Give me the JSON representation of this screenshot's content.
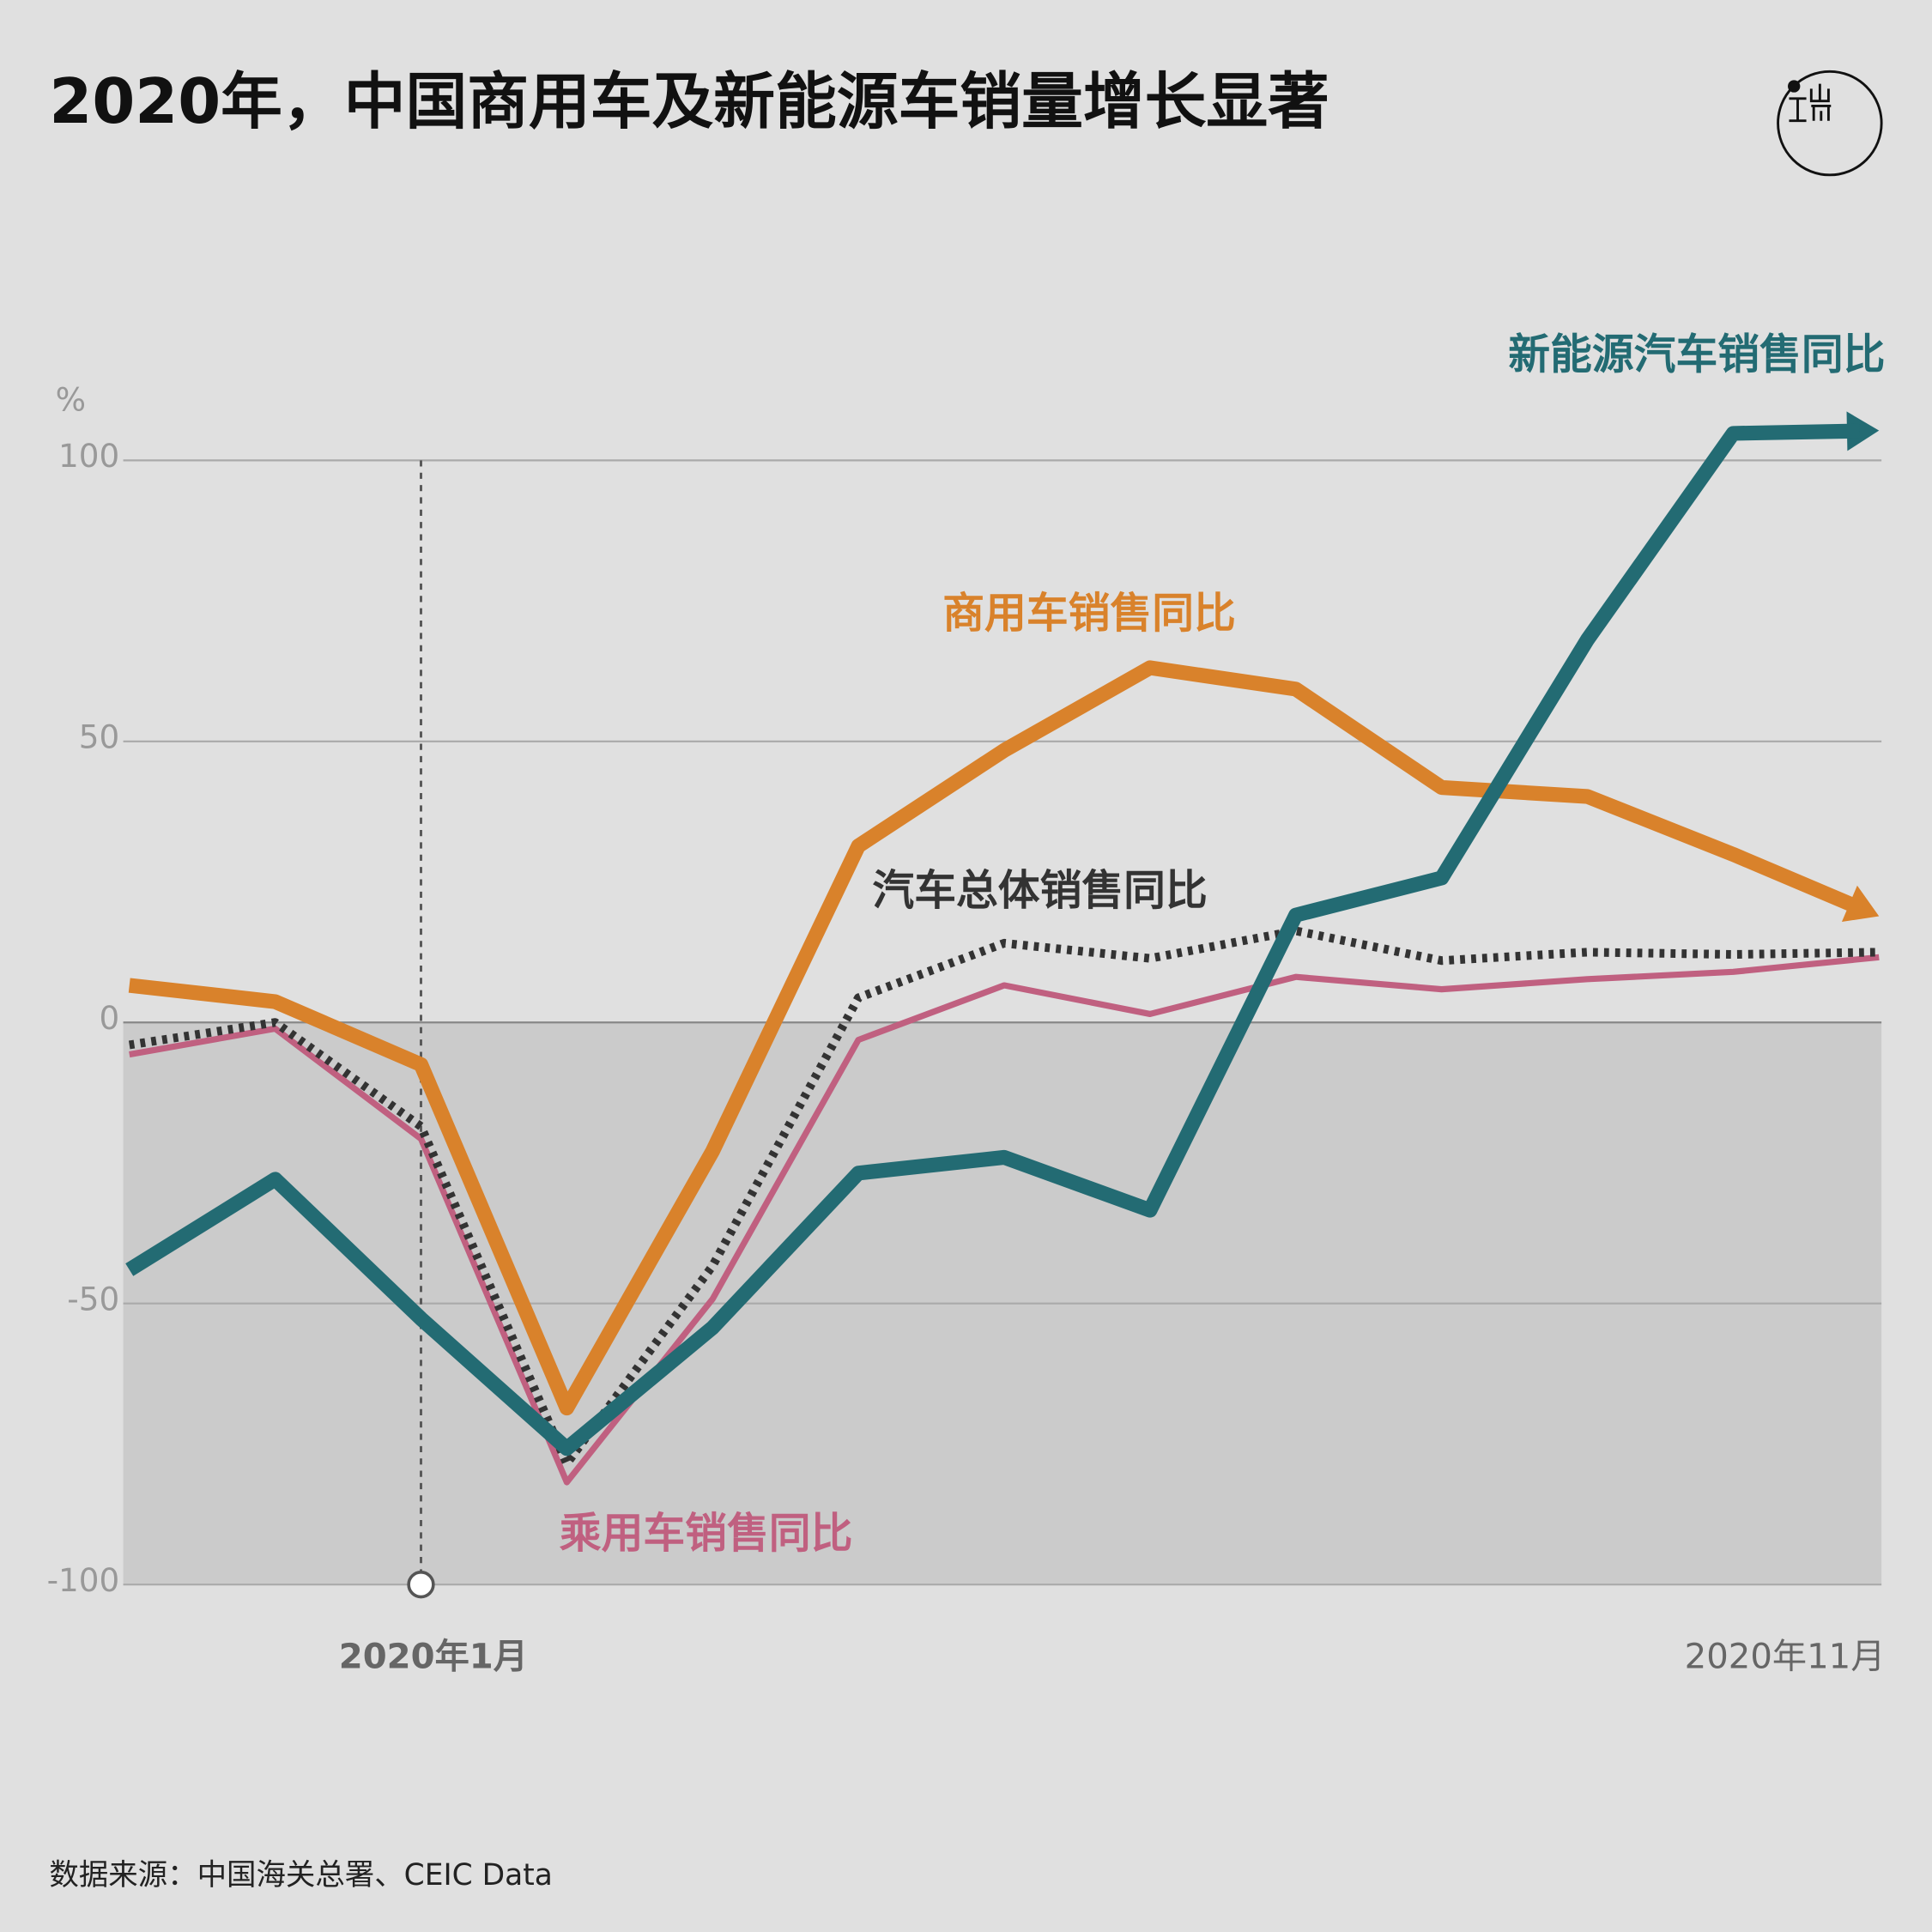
{
  "chart_data": {
    "type": "line",
    "title": "2020年，中国商用车及新能源车销量增长显著",
    "y_unit": "%",
    "source": "数据来源：中国海关总署、CEIC Data",
    "categories": [
      null,
      null,
      "2020年1月",
      null,
      null,
      null,
      null,
      null,
      null,
      null,
      null,
      null,
      "2020年11月"
    ],
    "ylim": [
      -100,
      110
    ],
    "yticks": [
      -100,
      -50,
      0,
      50,
      100
    ],
    "grid": true,
    "series": [
      {
        "name": "乘用车销售同比",
        "color": "#c06080",
        "values": [
          -5.7,
          -1.1,
          -20.7,
          -81.8,
          -49.2,
          -3.1,
          6.6,
          1.5,
          8.1,
          5.9,
          7.7,
          9,
          11.6
        ]
      },
      {
        "name": "汽车总体销售同比",
        "color": "#333333",
        "values": [
          -4,
          0,
          -18.5,
          -78.5,
          -43.3,
          4.4,
          14.1,
          11.4,
          16.3,
          11,
          12.5,
          12.1,
          12.5
        ]
      },
      {
        "name": "商用车销售同比",
        "color": "#d9822b",
        "values": [
          6.6,
          3.7,
          -7.5,
          -68.6,
          -22.9,
          31.4,
          48.4,
          63.1,
          59.3,
          41.8,
          40.2,
          29.9,
          18.9
        ]
      },
      {
        "name": "新能源汽车销售同比",
        "color": "#236b73",
        "values": [
          -44,
          -27.9,
          -52.7,
          -75.8,
          -54.3,
          -26.8,
          -24,
          -33.4,
          19.1,
          25.7,
          68.1,
          104.8,
          105.3
        ]
      }
    ]
  }
}
